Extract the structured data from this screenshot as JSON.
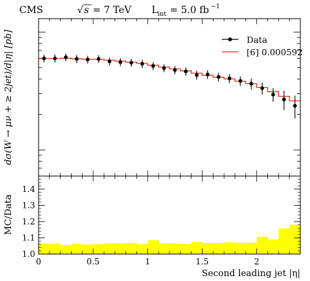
{
  "header": {
    "experiment": "CMS",
    "energy_sqrt": "s",
    "energy_rest": " = 7 TeV",
    "lumi_main": "L",
    "lumi_sub": "int",
    "lumi_rest": " = 5.0 fb",
    "lumi_exp": "−1"
  },
  "chart_data": [
    {
      "type": "line",
      "panel": "main",
      "ylabel": "dσ(W → μν + ≥ 2jet)/d|η| [pb]",
      "xlim": [
        0,
        2.4
      ],
      "x_edges": [
        0,
        0.1,
        0.2,
        0.3,
        0.4,
        0.5,
        0.6,
        0.7,
        0.8,
        0.9,
        1.0,
        1.1,
        1.2,
        1.3,
        1.4,
        1.5,
        1.6,
        1.7,
        1.8,
        1.9,
        2.0,
        2.1,
        2.2,
        2.3,
        2.4
      ],
      "x_ticks": [
        0,
        0.5,
        1,
        1.5,
        2
      ],
      "y_axis_log": true,
      "y_tick_labels_shown": false,
      "legend_position": "top-right",
      "series": [
        {
          "name": "Data",
          "style": "points-with-errors",
          "color": "#000000",
          "x": [
            0.05,
            0.15,
            0.25,
            0.35,
            0.45,
            0.55,
            0.65,
            0.75,
            0.85,
            0.95,
            1.05,
            1.15,
            1.25,
            1.35,
            1.45,
            1.55,
            1.65,
            1.75,
            1.85,
            1.95,
            2.05,
            2.15,
            2.25,
            2.35
          ],
          "y": [
            0.000598,
            0.000598,
            0.000612,
            0.000592,
            0.000585,
            0.000592,
            0.000565,
            0.000557,
            0.00055,
            0.000538,
            0.000516,
            0.000495,
            0.000476,
            0.000464,
            0.000432,
            0.000437,
            0.000416,
            0.000405,
            0.000385,
            0.000365,
            0.000334,
            0.000295,
            0.000268,
            0.000237
          ],
          "yerr": [
            4.6e-05,
            4.6e-05,
            4.6e-05,
            4.5e-05,
            4.4e-05,
            4.4e-05,
            4.3e-05,
            4.2e-05,
            4.2e-05,
            4.2e-05,
            4e-05,
            3.8e-05,
            3.8e-05,
            3.8e-05,
            3.6e-05,
            3.7e-05,
            3.6e-05,
            3.6e-05,
            3.6e-05,
            3.8e-05,
            3.8e-05,
            3.9e-05,
            5e-05,
            5.2e-05
          ]
        },
        {
          "name": "[6] 0.000592",
          "style": "step",
          "color": "#e8301c",
          "y": [
            0.000595,
            0.000595,
            0.0006,
            0.000592,
            0.000588,
            0.000587,
            0.000578,
            0.000567,
            0.000555,
            0.000542,
            0.000523,
            0.000505,
            0.000486,
            0.000468,
            0.000448,
            0.000429,
            0.000414,
            0.0004,
            0.000383,
            0.000364,
            0.000339,
            0.000312,
            0.000285,
            0.000261
          ]
        }
      ]
    },
    {
      "type": "area",
      "panel": "ratio",
      "ylabel": "MC/Data",
      "xlabel": "Second leading jet |η|",
      "xlim": [
        0,
        2.4
      ],
      "ylim": [
        1.0,
        1.48
      ],
      "y_ticks": [
        "1.0",
        "1.1",
        "1.2",
        "1.3",
        "1.4"
      ],
      "x_ticks": [
        "0",
        "0.5",
        "1",
        "1.5",
        "2"
      ],
      "fill_color": "#ffff00",
      "x_edges": [
        0,
        0.1,
        0.2,
        0.3,
        0.4,
        0.5,
        0.6,
        0.7,
        0.8,
        0.9,
        1.0,
        1.1,
        1.2,
        1.3,
        1.4,
        1.5,
        1.6,
        1.7,
        1.8,
        1.9,
        2.0,
        2.1,
        2.2,
        2.3,
        2.4
      ],
      "band_low": [
        1.0,
        1.0,
        1.0,
        1.0,
        1.0,
        1.0,
        1.0,
        1.0,
        1.0,
        1.0,
        1.0,
        1.0,
        1.0,
        1.0,
        1.0,
        1.0,
        1.0,
        1.0,
        1.0,
        1.0,
        1.0,
        1.0,
        1.0,
        1.0
      ],
      "band_high": [
        1.065,
        1.065,
        1.055,
        1.063,
        1.058,
        1.062,
        1.066,
        1.066,
        1.068,
        1.062,
        1.085,
        1.067,
        1.066,
        1.063,
        1.075,
        1.068,
        1.068,
        1.072,
        1.068,
        1.07,
        1.107,
        1.09,
        1.158,
        1.18
      ]
    }
  ]
}
